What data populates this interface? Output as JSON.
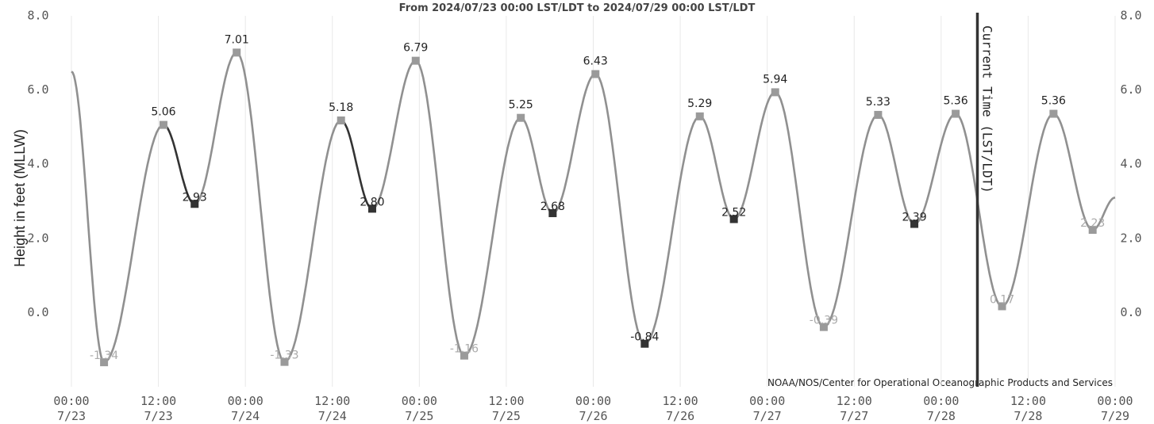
{
  "chart_data": {
    "type": "line",
    "title": "From 2024/07/23 00:00 LST/LDT to 2024/07/29 00:00 LST/LDT",
    "ylabel": "Height in feet (MLLW)",
    "ylim": [
      -2.0,
      8.0
    ],
    "y_ticks": [
      "8.0",
      "6.0",
      "4.0",
      "2.0",
      "0.0"
    ],
    "x_ticks": [
      {
        "time": "00:00",
        "date": "7/23"
      },
      {
        "time": "12:00",
        "date": "7/23"
      },
      {
        "time": "00:00",
        "date": "7/24"
      },
      {
        "time": "12:00",
        "date": "7/24"
      },
      {
        "time": "00:00",
        "date": "7/25"
      },
      {
        "time": "12:00",
        "date": "7/25"
      },
      {
        "time": "00:00",
        "date": "7/26"
      },
      {
        "time": "12:00",
        "date": "7/26"
      },
      {
        "time": "00:00",
        "date": "7/27"
      },
      {
        "time": "12:00",
        "date": "7/27"
      },
      {
        "time": "00:00",
        "date": "7/28"
      },
      {
        "time": "12:00",
        "date": "7/28"
      },
      {
        "time": "00:00",
        "date": "7/29"
      }
    ],
    "start_value": 6.5,
    "end_value": 3.1,
    "points": [
      {
        "t": 4.5,
        "v": -1.34,
        "label": "-1.34",
        "dark": false
      },
      {
        "t": 12.7,
        "v": 5.06,
        "label": "5.06",
        "dark": false
      },
      {
        "t": 17.0,
        "v": 2.93,
        "label": "2.93",
        "dark": true
      },
      {
        "t": 22.8,
        "v": 7.01,
        "label": "7.01",
        "dark": false
      },
      {
        "t": 29.4,
        "v": -1.33,
        "label": "-1.33",
        "dark": false
      },
      {
        "t": 37.2,
        "v": 5.18,
        "label": "5.18",
        "dark": false
      },
      {
        "t": 41.5,
        "v": 2.8,
        "label": "2.80",
        "dark": true
      },
      {
        "t": 47.5,
        "v": 6.79,
        "label": "6.79",
        "dark": false
      },
      {
        "t": 54.2,
        "v": -1.16,
        "label": "-1.16",
        "dark": false
      },
      {
        "t": 62.0,
        "v": 5.25,
        "label": "5.25",
        "dark": false
      },
      {
        "t": 66.4,
        "v": 2.68,
        "label": "2.68",
        "dark": true
      },
      {
        "t": 72.3,
        "v": 6.43,
        "label": "6.43",
        "dark": false
      },
      {
        "t": 79.1,
        "v": -0.84,
        "label": "-0.84",
        "dark": true
      },
      {
        "t": 86.7,
        "v": 5.29,
        "label": "5.29",
        "dark": false
      },
      {
        "t": 91.4,
        "v": 2.52,
        "label": "2.52",
        "dark": true
      },
      {
        "t": 97.1,
        "v": 5.94,
        "label": "5.94",
        "dark": false
      },
      {
        "t": 103.8,
        "v": -0.39,
        "label": "-0.39",
        "dark": false
      },
      {
        "t": 111.3,
        "v": 5.33,
        "label": "5.33",
        "dark": false
      },
      {
        "t": 116.3,
        "v": 2.39,
        "label": "2.39",
        "dark": true
      },
      {
        "t": 122.0,
        "v": 5.36,
        "label": "5.36",
        "dark": false
      },
      {
        "t": 128.4,
        "v": 0.17,
        "label": "0.17",
        "dark": false
      },
      {
        "t": 135.5,
        "v": 5.36,
        "label": "5.36",
        "dark": false
      },
      {
        "t": 140.9,
        "v": 2.23,
        "label": "2.23",
        "dark": false
      }
    ],
    "dark_segments": [
      [
        12.7,
        17.0
      ],
      [
        37.2,
        41.5
      ]
    ],
    "current_time": {
      "t": 125.0,
      "label": "Current Time (LST/LDT)"
    },
    "credit": "NOAA/NOS/Center for Operational Oceanographic Products and Services",
    "colors": {
      "line": "#909090",
      "dark_line": "#333333",
      "marker": "#9a9a9a",
      "dark_marker": "#333333",
      "grid": "#e8e8e8",
      "current_line": "#333333"
    }
  }
}
